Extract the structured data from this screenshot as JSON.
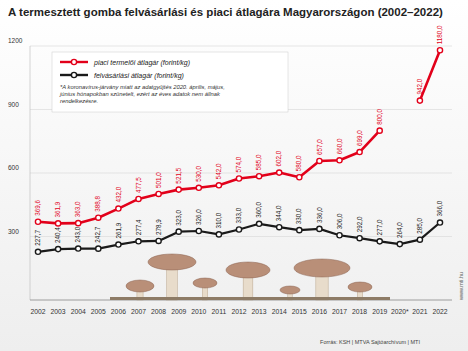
{
  "chart_data": {
    "type": "line",
    "title": "A termesztett gomba felvásárlási és piaci átlagára Magyarországon (2002–2022)",
    "categories": [
      "2002",
      "2003",
      "2004",
      "2005",
      "2006",
      "2007",
      "2008",
      "2009",
      "2010",
      "2011",
      "2012",
      "2013",
      "2014",
      "2015",
      "2016",
      "2017",
      "2018",
      "2019",
      "2020*",
      "2021",
      "2022"
    ],
    "series": [
      {
        "name": "piaci termelői átlagár (forint/kg)",
        "color": "#e2001a",
        "marker": "circle",
        "values": [
          369.6,
          361.9,
          363.0,
          388.8,
          432.0,
          477.5,
          501.0,
          521.5,
          530.0,
          542.0,
          574.0,
          585.0,
          602.0,
          580.0,
          657.0,
          660.0,
          699.0,
          800.0,
          null,
          942.0,
          1180.0
        ],
        "value_labels": [
          "369,6",
          "361,9",
          "363,0",
          "388,8",
          "432,0",
          "477,5",
          "501,0",
          "521,5",
          "530,0",
          "542,0",
          "574,0",
          "585,0",
          "602,0",
          "580,0",
          "657,0",
          "660,0",
          "699,0",
          "800,0",
          null,
          "942,0",
          "1180,0"
        ]
      },
      {
        "name": "felvásárlási átlagár (forint/kg)",
        "color": "#1a1a1a",
        "marker": "circle",
        "values": [
          227.7,
          240.4,
          243.0,
          242.7,
          261.9,
          277.4,
          278.9,
          323.0,
          326.0,
          310.0,
          333.0,
          360.0,
          344.0,
          330.0,
          336.0,
          306.0,
          292.0,
          277.0,
          264.0,
          285.0,
          366.0
        ],
        "value_labels": [
          "227,7",
          "240,4",
          "243,0",
          "242,7",
          "261,9",
          "277,4",
          "278,9",
          "323,0",
          "326,0",
          "310,0",
          "333,0",
          "360,0",
          "344,0",
          "330,0",
          "336,0",
          "306,0",
          "292,0",
          "277,0",
          "264,0",
          "285,0",
          "366,0"
        ]
      }
    ],
    "ylim": [
      0,
      1200
    ],
    "yticks": [
      300,
      600,
      900,
      1200
    ],
    "grid": true,
    "legend": "upper left",
    "data_labels": true,
    "note": "*A koronavírus-járvány miatt az adatgyűjtés 2020. április, május, június hónapokban szünetelt, ezért az éves adatok nem állnak rendelkezésre.",
    "source": "Forrás: KSH | MTVA Sajtóarchívum | MTI",
    "credit": "www.mti.hu"
  }
}
